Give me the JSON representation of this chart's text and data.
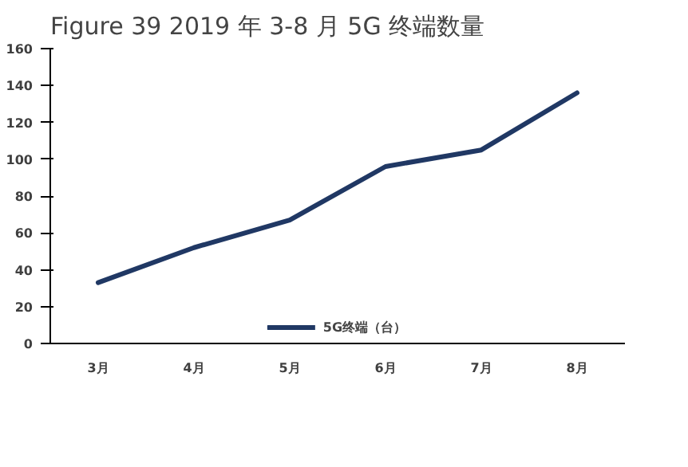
{
  "chart_data": {
    "type": "line",
    "title": "Figure 39 2019 年 3-8 月 5G 终端数量",
    "categories": [
      "3月",
      "4月",
      "5月",
      "6月",
      "7月",
      "8月"
    ],
    "series": [
      {
        "name": "5G终端（台）",
        "color": "#203864",
        "values": [
          33,
          52,
          67,
          96,
          105,
          136
        ]
      }
    ],
    "ylim": [
      0,
      160
    ],
    "yticks": [
      0,
      20,
      40,
      60,
      80,
      100,
      120,
      140,
      160
    ],
    "grid": false,
    "legend": "bottom",
    "marker": "none",
    "line_style": "solid"
  }
}
